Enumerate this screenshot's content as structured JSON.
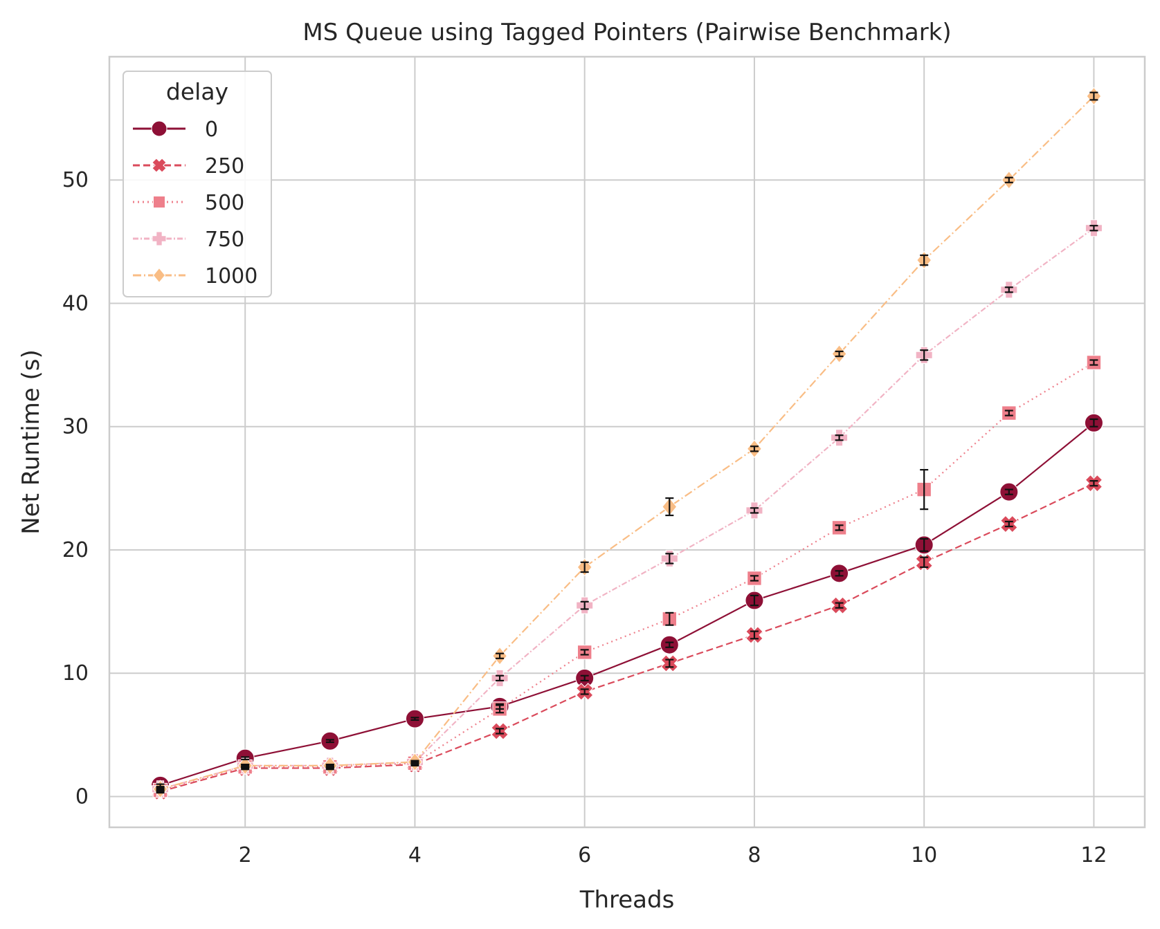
{
  "chart_data": {
    "type": "line",
    "title": "MS Queue using Tagged Pointers (Pairwise Benchmark)",
    "xlabel": "Threads",
    "ylabel": "Net Runtime (s)",
    "xlim": [
      0.4,
      12.6
    ],
    "ylim": [
      -2.5,
      60
    ],
    "xticks": [
      2,
      4,
      6,
      8,
      10,
      12
    ],
    "yticks": [
      0,
      10,
      20,
      30,
      40,
      50
    ],
    "grid": true,
    "legend": {
      "title": "delay",
      "position": "top-left"
    },
    "x": [
      1,
      2,
      3,
      4,
      5,
      6,
      7,
      8,
      9,
      10,
      11,
      12
    ],
    "series": [
      {
        "name": "0",
        "marker": "circle",
        "dash": "solid",
        "color": "#8E1036",
        "values": [
          0.9,
          3.1,
          4.5,
          6.3,
          7.3,
          9.6,
          12.3,
          15.9,
          18.1,
          20.4,
          24.7,
          30.3
        ],
        "errors": [
          0.1,
          0.1,
          0.1,
          0.1,
          0.2,
          0.2,
          0.2,
          0.4,
          0.2,
          0.5,
          0.2,
          0.3
        ]
      },
      {
        "name": "250",
        "marker": "x",
        "dash": "dashed",
        "color": "#DA4A5B",
        "values": [
          0.4,
          2.3,
          2.3,
          2.6,
          5.3,
          8.5,
          10.8,
          13.1,
          15.5,
          19.0,
          22.1,
          25.4
        ],
        "errors": [
          0.1,
          0.1,
          0.1,
          0.1,
          0.2,
          0.2,
          0.3,
          0.3,
          0.2,
          0.4,
          0.2,
          0.2
        ]
      },
      {
        "name": "500",
        "marker": "square",
        "dash": "dotted",
        "color": "#EE7F8B",
        "values": [
          0.5,
          2.4,
          2.4,
          2.7,
          7.1,
          11.7,
          14.4,
          17.7,
          21.8,
          24.9,
          31.1,
          35.2
        ],
        "errors": [
          0.1,
          0.1,
          0.1,
          0.1,
          0.3,
          0.2,
          0.5,
          0.2,
          0.2,
          1.6,
          0.2,
          0.2
        ]
      },
      {
        "name": "750",
        "marker": "plus",
        "dash": "dashdot-fine",
        "color": "#F1B3C4",
        "values": [
          0.6,
          2.5,
          2.5,
          2.8,
          9.6,
          15.5,
          19.3,
          23.2,
          29.1,
          35.8,
          41.1,
          46.1
        ],
        "errors": [
          0.1,
          0.1,
          0.1,
          0.1,
          0.2,
          0.3,
          0.4,
          0.2,
          0.2,
          0.4,
          0.2,
          0.2
        ]
      },
      {
        "name": "1000",
        "marker": "diamond",
        "dash": "dashdot",
        "color": "#F9BD85",
        "values": [
          0.6,
          2.5,
          2.5,
          2.8,
          11.4,
          18.6,
          23.5,
          28.2,
          35.9,
          43.5,
          50.0,
          56.8
        ],
        "errors": [
          0.1,
          0.1,
          0.1,
          0.1,
          0.2,
          0.4,
          0.7,
          0.2,
          0.2,
          0.4,
          0.2,
          0.3
        ]
      }
    ]
  }
}
